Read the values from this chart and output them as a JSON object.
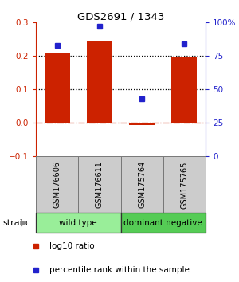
{
  "title": "GDS2691 / 1343",
  "samples": [
    "GSM176606",
    "GSM176611",
    "GSM175764",
    "GSM175765"
  ],
  "log10_ratio": [
    0.21,
    0.245,
    -0.005,
    0.195
  ],
  "percentile_rank": [
    83,
    97,
    43,
    84
  ],
  "bar_color": "#cc2200",
  "point_color": "#2222cc",
  "ylim_left": [
    -0.1,
    0.3
  ],
  "ylim_right": [
    0,
    100
  ],
  "yticks_left": [
    -0.1,
    0.0,
    0.1,
    0.2,
    0.3
  ],
  "yticks_right": [
    0,
    25,
    50,
    75,
    100
  ],
  "ytick_labels_right": [
    "0",
    "25",
    "50",
    "75",
    "100%"
  ],
  "groups": [
    {
      "label": "wild type",
      "samples": [
        0,
        1
      ],
      "color": "#99ee99"
    },
    {
      "label": "dominant negative",
      "samples": [
        2,
        3
      ],
      "color": "#55cc55"
    }
  ],
  "strain_label": "strain",
  "legend_items": [
    {
      "color": "#cc2200",
      "label": "log10 ratio"
    },
    {
      "color": "#2222cc",
      "label": "percentile rank within the sample"
    }
  ],
  "bar_width": 0.6,
  "background_color": "#ffffff",
  "sample_box_color": "#cccccc",
  "sample_box_edge": "#777777"
}
